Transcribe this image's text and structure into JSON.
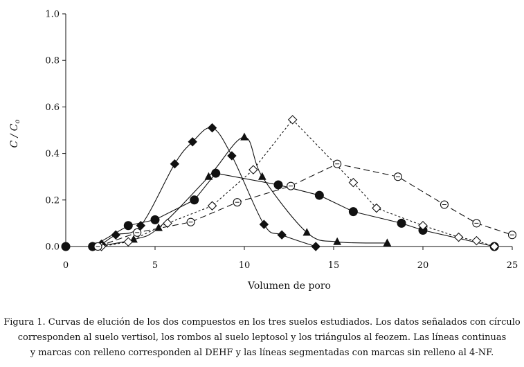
{
  "chart_data": {
    "type": "line",
    "xlabel": "Volumen de poro",
    "ylabel": "C / Co",
    "xlim": [
      0,
      25
    ],
    "ylim": [
      0,
      1
    ],
    "xticks": [
      "0",
      "5",
      "10",
      "15",
      "20",
      "25"
    ],
    "yticks": [
      "0.0",
      "0.2",
      "0.4",
      "0.6",
      "0.8",
      "1.0"
    ],
    "grid": false,
    "legend": "none",
    "series": [
      {
        "marker": "diamond",
        "filled": true,
        "dash": "solid",
        "curve": "smooth",
        "x": [
          1.5,
          2,
          2.8,
          4.2,
          6.1,
          7.1,
          8.2,
          9.3,
          11.1,
          12.1,
          14
        ],
        "y": [
          0,
          0.01,
          0.05,
          0.09,
          0.355,
          0.45,
          0.51,
          0.39,
          0.095,
          0.05,
          0
        ]
      },
      {
        "marker": "triangle",
        "filled": true,
        "dash": "solid",
        "curve": "smooth",
        "x": [
          1.7,
          3.8,
          5.2,
          8,
          10,
          11,
          13.5,
          15.2,
          18
        ],
        "y": [
          0,
          0.03,
          0.08,
          0.3,
          0.47,
          0.3,
          0.06,
          0.02,
          0.015
        ]
      },
      {
        "marker": "circle",
        "filled": true,
        "dash": "solid",
        "curve": "straight",
        "x": [
          0,
          1.5,
          3.5,
          5,
          7.2,
          8.4,
          11.9,
          14.2,
          16.1,
          18.8,
          20,
          24
        ],
        "y": [
          0,
          0,
          0.09,
          0.115,
          0.2,
          0.315,
          0.265,
          0.22,
          0.15,
          0.1,
          0.07,
          0
        ]
      },
      {
        "marker": "diamond",
        "filled": false,
        "dash": "dotted",
        "curve": "straight",
        "x": [
          2,
          3.5,
          5.7,
          8.2,
          10.5,
          12.7,
          16.1,
          17.4,
          20,
          22,
          23,
          24
        ],
        "y": [
          0,
          0.02,
          0.1,
          0.175,
          0.33,
          0.545,
          0.275,
          0.165,
          0.09,
          0.04,
          0.025,
          0
        ]
      },
      {
        "marker": "circle",
        "filled": false,
        "dash": "dashed",
        "curve": "straight",
        "x": [
          1.8,
          4,
          7,
          9.6,
          12.6,
          15.2,
          18.6,
          21.2,
          23,
          25
        ],
        "y": [
          0,
          0.06,
          0.105,
          0.19,
          0.26,
          0.355,
          0.3,
          0.18,
          0.1,
          0.05
        ]
      }
    ]
  },
  "caption": {
    "line1": "Figura 1. Curvas de elución de los dos compuestos en los tres suelos estudiados. Los datos señalados con círculo",
    "line2": "corresponden al suelo vertisol, los rombos al suelo leptosol y los triángulos al feozem. Las líneas continuas",
    "line3": "y marcas con relleno corresponden al DEHF y las líneas segmentadas con marcas sin relleno al 4-NF."
  }
}
